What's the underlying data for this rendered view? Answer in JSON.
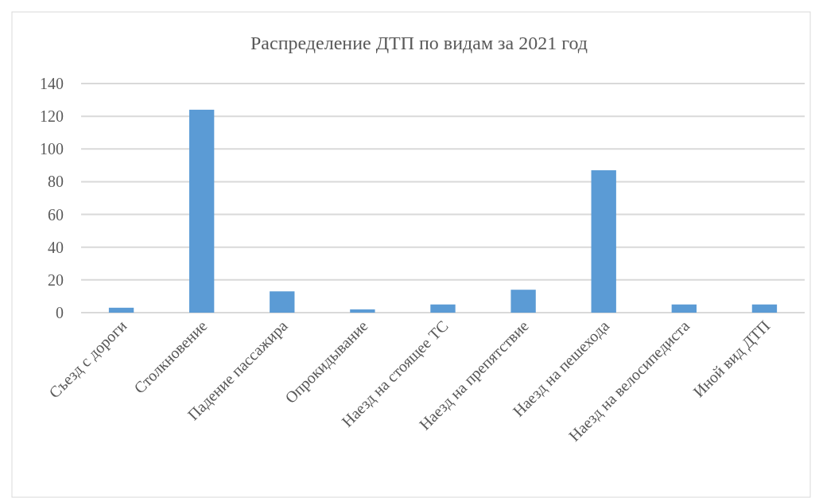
{
  "chart_data": {
    "type": "bar",
    "title": "Распределение ДТП по видам за 2021 год",
    "categories": [
      "Съезд с дороги",
      "Столкновение",
      "Падение пассажира",
      "Опрокидывание",
      "Наезд на стоящее ТС",
      "Наезд на препятствие",
      "Наезд на пешехода",
      "Наезд на велосипедиста",
      "Иной вид ДТП"
    ],
    "values": [
      3,
      124,
      13,
      2,
      5,
      14,
      87,
      5,
      5
    ],
    "color": "#5b9bd5",
    "ylim": [
      0,
      140
    ],
    "yticks": [
      0,
      20,
      40,
      60,
      80,
      100,
      120,
      140
    ],
    "grid": true
  }
}
